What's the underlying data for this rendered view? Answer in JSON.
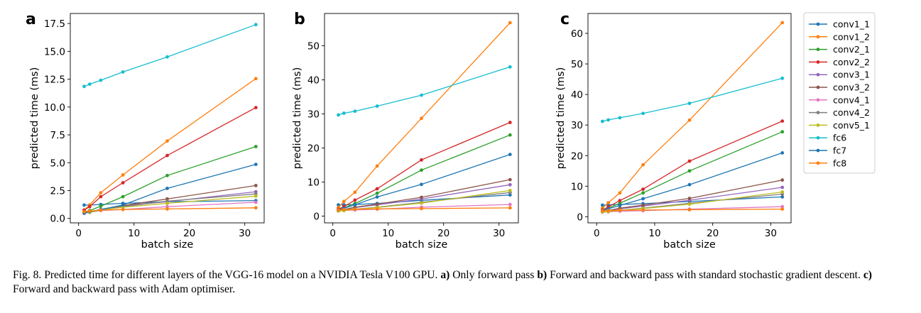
{
  "chart_data": [
    {
      "type": "line",
      "panel_label": "a",
      "xlabel": "batch size",
      "ylabel": "predicted time (ms)",
      "xlim": [
        -1.5,
        33.5
      ],
      "ylim": [
        -0.4,
        18.4
      ],
      "x_ticks": [
        0,
        10,
        20,
        30
      ],
      "y_ticks": [
        0.0,
        2.5,
        5.0,
        7.5,
        10.0,
        12.5,
        15.0,
        17.5
      ],
      "y_tick_labels": [
        "0.0",
        "2.5",
        "5.0",
        "7.5",
        "10.0",
        "12.5",
        "15.0",
        "17.5"
      ],
      "x": [
        1,
        2,
        4,
        8,
        16,
        32
      ],
      "series": [
        {
          "name": "conv1_1",
          "color": "#1f77b4",
          "values": [
            1.2,
            1.2,
            1.25,
            1.35,
            1.5,
            1.6
          ]
        },
        {
          "name": "conv1_2",
          "color": "#ff7f0e",
          "values": [
            0.75,
            1.2,
            2.3,
            3.9,
            6.95,
            12.55
          ]
        },
        {
          "name": "conv2_1",
          "color": "#2ca02c",
          "values": [
            0.6,
            0.7,
            1.1,
            1.95,
            3.85,
            6.45
          ]
        },
        {
          "name": "conv2_2",
          "color": "#d62728",
          "values": [
            0.75,
            1.05,
            1.95,
            3.2,
            5.65,
            9.95
          ]
        },
        {
          "name": "conv3_1",
          "color": "#9467bd",
          "values": [
            0.45,
            0.55,
            0.8,
            1.15,
            1.5,
            2.4
          ]
        },
        {
          "name": "conv3_2",
          "color": "#8c564b",
          "values": [
            0.5,
            0.6,
            0.8,
            1.15,
            1.75,
            2.95
          ]
        },
        {
          "name": "conv4_1",
          "color": "#e377c2",
          "values": [
            0.5,
            0.55,
            0.7,
            0.8,
            1.05,
            1.45
          ]
        },
        {
          "name": "conv4_2",
          "color": "#7f7f7f",
          "values": [
            0.5,
            0.55,
            0.8,
            1.05,
            1.55,
            2.2
          ]
        },
        {
          "name": "conv5_1",
          "color": "#bcbd22",
          "values": [
            0.5,
            0.55,
            0.75,
            1.0,
            1.35,
            2.0
          ]
        },
        {
          "name": "fc6",
          "color": "#17becf",
          "values": [
            11.85,
            12.05,
            12.4,
            13.15,
            14.5,
            17.4
          ]
        },
        {
          "name": "fc7",
          "color": "#1f77b4",
          "values": [
            0.5,
            0.6,
            0.8,
            1.2,
            2.7,
            4.85
          ]
        },
        {
          "name": "fc8",
          "color": "#ff7f0e",
          "values": [
            0.6,
            0.65,
            0.75,
            0.8,
            0.85,
            0.95
          ]
        }
      ]
    },
    {
      "type": "line",
      "panel_label": "b",
      "xlabel": "batch size",
      "ylabel": "predicted time (ms)",
      "xlim": [
        -1.5,
        33.5
      ],
      "ylim": [
        -2.0,
        59.5
      ],
      "x_ticks": [
        0,
        10,
        20,
        30
      ],
      "y_ticks": [
        0,
        10,
        20,
        30,
        40,
        50
      ],
      "y_tick_labels": [
        "0",
        "10",
        "20",
        "30",
        "40",
        "50"
      ],
      "x": [
        1,
        2,
        4,
        8,
        16,
        32
      ],
      "series": [
        {
          "name": "conv1_1",
          "color": "#1f77b4",
          "values": [
            3.3,
            3.3,
            3.4,
            3.7,
            4.6,
            6.2
          ]
        },
        {
          "name": "conv1_2",
          "color": "#ff7f0e",
          "values": [
            2.5,
            4.3,
            7.0,
            14.7,
            28.7,
            56.8
          ]
        },
        {
          "name": "conv2_1",
          "color": "#2ca02c",
          "values": [
            1.8,
            2.4,
            3.7,
            6.7,
            13.5,
            23.8
          ]
        },
        {
          "name": "conv2_2",
          "color": "#d62728",
          "values": [
            2.0,
            2.8,
            4.7,
            8.0,
            16.5,
            27.5
          ]
        },
        {
          "name": "conv3_1",
          "color": "#9467bd",
          "values": [
            1.5,
            1.8,
            2.5,
            3.3,
            5.0,
            9.2
          ]
        },
        {
          "name": "conv3_2",
          "color": "#8c564b",
          "values": [
            1.6,
            1.9,
            2.6,
            3.5,
            5.5,
            10.7
          ]
        },
        {
          "name": "conv4_1",
          "color": "#e377c2",
          "values": [
            1.5,
            1.6,
            1.8,
            2.0,
            2.6,
            3.4
          ]
        },
        {
          "name": "conv4_2",
          "color": "#7f7f7f",
          "values": [
            1.6,
            1.7,
            2.0,
            2.6,
            4.0,
            6.9
          ]
        },
        {
          "name": "conv5_1",
          "color": "#bcbd22",
          "values": [
            1.5,
            1.6,
            2.0,
            2.5,
            3.8,
            7.5
          ]
        },
        {
          "name": "fc6",
          "color": "#17becf",
          "values": [
            29.7,
            30.2,
            30.8,
            32.3,
            35.5,
            43.8
          ]
        },
        {
          "name": "fc7",
          "color": "#1f77b4",
          "values": [
            1.8,
            2.3,
            3.3,
            5.6,
            9.3,
            18.1
          ]
        },
        {
          "name": "fc8",
          "color": "#ff7f0e",
          "values": [
            1.8,
            1.9,
            2.0,
            2.1,
            2.2,
            2.4
          ]
        }
      ]
    },
    {
      "type": "line",
      "panel_label": "c",
      "xlabel": "batch size",
      "ylabel": "predicted time (ms)",
      "xlim": [
        -1.5,
        33.5
      ],
      "ylim": [
        -2.0,
        66.5
      ],
      "x_ticks": [
        0,
        10,
        20,
        30
      ],
      "y_ticks": [
        0,
        10,
        20,
        30,
        40,
        50,
        60
      ],
      "y_tick_labels": [
        "0",
        "10",
        "20",
        "30",
        "40",
        "50",
        "60"
      ],
      "x": [
        1,
        2,
        4,
        8,
        16,
        32
      ],
      "series": [
        {
          "name": "conv1_1",
          "color": "#1f77b4",
          "values": [
            3.8,
            3.9,
            4.0,
            4.3,
            5.0,
            6.5
          ]
        },
        {
          "name": "conv1_2",
          "color": "#ff7f0e",
          "values": [
            2.8,
            4.6,
            7.8,
            17.0,
            31.6,
            63.5
          ]
        },
        {
          "name": "conv2_1",
          "color": "#2ca02c",
          "values": [
            2.0,
            2.8,
            4.4,
            7.8,
            15.0,
            27.8
          ]
        },
        {
          "name": "conv2_2",
          "color": "#d62728",
          "values": [
            2.2,
            3.2,
            5.3,
            9.0,
            18.2,
            31.3
          ]
        },
        {
          "name": "conv3_1",
          "color": "#9467bd",
          "values": [
            1.6,
            1.9,
            2.6,
            3.5,
            5.4,
            9.6
          ]
        },
        {
          "name": "conv3_2",
          "color": "#8c564b",
          "values": [
            1.7,
            2.0,
            2.8,
            3.8,
            6.0,
            12.0
          ]
        },
        {
          "name": "conv4_1",
          "color": "#e377c2",
          "values": [
            1.5,
            1.6,
            1.8,
            2.0,
            2.5,
            3.3
          ]
        },
        {
          "name": "conv4_2",
          "color": "#7f7f7f",
          "values": [
            1.7,
            1.8,
            2.1,
            2.8,
            4.4,
            7.4
          ]
        },
        {
          "name": "conv5_1",
          "color": "#bcbd22",
          "values": [
            1.6,
            1.7,
            2.1,
            2.7,
            4.1,
            8.1
          ]
        },
        {
          "name": "fc6",
          "color": "#17becf",
          "values": [
            31.2,
            31.7,
            32.4,
            33.8,
            37.1,
            45.3
          ]
        },
        {
          "name": "fc7",
          "color": "#1f77b4",
          "values": [
            2.0,
            2.6,
            3.7,
            5.9,
            10.5,
            20.9
          ]
        },
        {
          "name": "fc8",
          "color": "#ff7f0e",
          "values": [
            1.9,
            2.0,
            2.1,
            2.2,
            2.3,
            2.5
          ]
        }
      ]
    }
  ],
  "legend": {
    "placement": "right",
    "entries": [
      {
        "name": "conv1_1",
        "color": "#1f77b4"
      },
      {
        "name": "conv1_2",
        "color": "#ff7f0e"
      },
      {
        "name": "conv2_1",
        "color": "#2ca02c"
      },
      {
        "name": "conv2_2",
        "color": "#d62728"
      },
      {
        "name": "conv3_1",
        "color": "#9467bd"
      },
      {
        "name": "conv3_2",
        "color": "#8c564b"
      },
      {
        "name": "conv4_1",
        "color": "#e377c2"
      },
      {
        "name": "conv4_2",
        "color": "#7f7f7f"
      },
      {
        "name": "conv5_1",
        "color": "#bcbd22"
      },
      {
        "name": "fc6",
        "color": "#17becf"
      },
      {
        "name": "fc7",
        "color": "#1f77b4"
      },
      {
        "name": "fc8",
        "color": "#ff7f0e"
      }
    ]
  },
  "caption": {
    "prefix": "Fig. 8.  Predicted time for different layers of the VGG-16 model on a NVIDIA Tesla V100 GPU. ",
    "a_label": "a)",
    "a_text": " Only forward pass ",
    "b_label": "b)",
    "b_text": " Forward and backward pass with standard stochastic gradient descent. ",
    "c_label": "c)",
    "c_text": " Forward and backward pass with Adam optimiser."
  }
}
